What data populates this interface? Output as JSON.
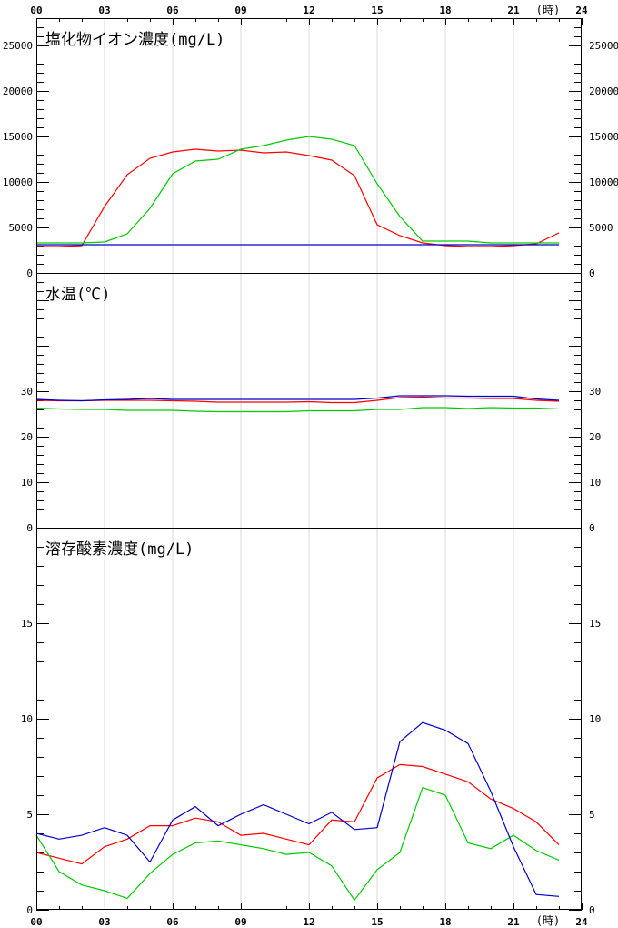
{
  "x_axis": {
    "tick_labels": [
      "00",
      "03",
      "06",
      "09",
      "12",
      "15",
      "18",
      "21",
      "24"
    ],
    "unit_label": "(時)"
  },
  "colors": {
    "red": "#ff0000",
    "green": "#00cc00",
    "blue": "#0000cc",
    "grid": "#d8d8d8",
    "axis": "#000000"
  },
  "chart_data": [
    {
      "type": "line",
      "title": "塩化物イオン濃度(mg/L)",
      "ylim": [
        0,
        28000
      ],
      "y_tick_labels": [
        "0",
        "5000",
        "10000",
        "15000",
        "20000",
        "25000"
      ],
      "x": [
        0,
        1,
        2,
        3,
        4,
        5,
        6,
        7,
        8,
        9,
        10,
        11,
        12,
        13,
        14,
        15,
        16,
        17,
        18,
        19,
        20,
        21,
        22,
        23
      ],
      "series": [
        {
          "color": "red",
          "values": [
            2900,
            2900,
            3000,
            7300,
            10800,
            12600,
            13300,
            13600,
            13400,
            13500,
            13200,
            13300,
            12900,
            12400,
            10700,
            5300,
            4100,
            3300,
            3000,
            2900,
            2900,
            3000,
            3200,
            4400
          ]
        },
        {
          "color": "green",
          "values": [
            3300,
            3300,
            3300,
            3400,
            4300,
            7100,
            10900,
            12300,
            12500,
            13600,
            14000,
            14600,
            15000,
            14700,
            14000,
            9800,
            6200,
            3500,
            3500,
            3500,
            3300,
            3300,
            3300,
            3300
          ]
        },
        {
          "color": "blue",
          "values": [
            3100,
            3100,
            3100,
            3100,
            3100,
            3100,
            3100,
            3100,
            3100,
            3100,
            3100,
            3100,
            3100,
            3100,
            3100,
            3100,
            3100,
            3100,
            3100,
            3100,
            3100,
            3100,
            3100,
            3100
          ]
        }
      ]
    },
    {
      "type": "line",
      "title": "水温(℃)",
      "ylim": [
        0,
        56
      ],
      "y_tick_labels": [
        "0",
        "10",
        "20",
        "30"
      ],
      "x": [
        0,
        1,
        2,
        3,
        4,
        5,
        6,
        7,
        8,
        9,
        10,
        11,
        12,
        13,
        14,
        15,
        16,
        17,
        18,
        19,
        20,
        21,
        22,
        23
      ],
      "series": [
        {
          "color": "red",
          "values": [
            28.0,
            27.9,
            27.9,
            28.0,
            28.0,
            28.0,
            27.9,
            27.8,
            27.6,
            27.6,
            27.6,
            27.6,
            27.7,
            27.5,
            27.5,
            28.0,
            28.6,
            28.7,
            28.5,
            28.5,
            28.4,
            28.4,
            28.0,
            27.8
          ]
        },
        {
          "color": "green",
          "values": [
            26.3,
            26.1,
            26.0,
            26.0,
            25.8,
            25.8,
            25.8,
            25.6,
            25.5,
            25.5,
            25.5,
            25.5,
            25.7,
            25.7,
            25.7,
            26.0,
            26.0,
            26.4,
            26.4,
            26.2,
            26.4,
            26.3,
            26.3,
            26.1
          ]
        },
        {
          "color": "blue",
          "values": [
            28.2,
            28.0,
            27.9,
            28.1,
            28.2,
            28.4,
            28.2,
            28.2,
            28.2,
            28.2,
            28.2,
            28.2,
            28.2,
            28.2,
            28.2,
            28.5,
            29.0,
            29.0,
            29.0,
            28.9,
            28.9,
            28.9,
            28.3,
            28.0
          ]
        }
      ]
    },
    {
      "type": "line",
      "title": "溶存酸素濃度(mg/L)",
      "ylim": [
        0,
        20
      ],
      "y_tick_labels": [
        "0",
        "5",
        "10",
        "15"
      ],
      "x": [
        0,
        1,
        2,
        3,
        4,
        5,
        6,
        7,
        8,
        9,
        10,
        11,
        12,
        13,
        14,
        15,
        16,
        17,
        18,
        19,
        20,
        21,
        22,
        23
      ],
      "series": [
        {
          "color": "red",
          "values": [
            3.0,
            2.7,
            2.4,
            3.3,
            3.7,
            4.4,
            4.4,
            4.8,
            4.6,
            3.9,
            4.0,
            3.7,
            3.4,
            4.7,
            4.6,
            6.9,
            7.6,
            7.5,
            7.1,
            6.7,
            5.8,
            5.3,
            4.6,
            3.4
          ]
        },
        {
          "color": "green",
          "values": [
            3.9,
            2.0,
            1.3,
            1.0,
            0.6,
            1.9,
            2.9,
            3.5,
            3.6,
            3.4,
            3.2,
            2.9,
            3.0,
            2.3,
            0.5,
            2.1,
            3.0,
            6.4,
            6.0,
            3.5,
            3.2,
            3.9,
            3.1,
            2.6
          ]
        },
        {
          "color": "blue",
          "values": [
            4.0,
            3.7,
            3.9,
            4.3,
            3.9,
            2.5,
            4.7,
            5.4,
            4.4,
            5.0,
            5.5,
            5.0,
            4.5,
            5.1,
            4.2,
            4.3,
            8.8,
            9.8,
            9.4,
            8.7,
            6.2,
            3.3,
            0.8,
            0.7
          ]
        }
      ]
    }
  ]
}
